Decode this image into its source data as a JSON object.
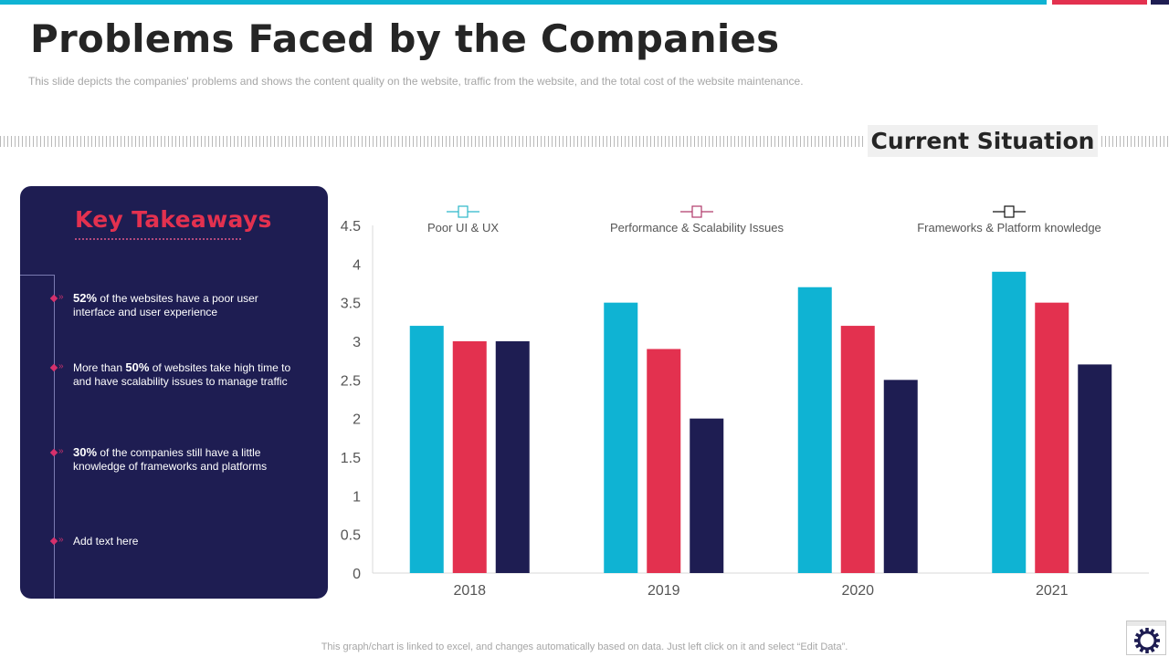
{
  "slide": {
    "title": "Problems Faced by the Companies",
    "subtitle": "This slide depicts the companies' problems and shows the content quality on the website, traffic from the website, and the total cost of the website maintenance.",
    "section_label": "Current Situation",
    "footer_note": "This graph/chart is linked to excel, and changes automatically based on data. Just left click on it and select “Edit Data”.",
    "colors": {
      "cyan": "#0fb3d3",
      "red": "#e3314f",
      "navy": "#1e1d52"
    }
  },
  "takeaways": {
    "title": "Key Takeaways",
    "items": [
      {
        "bold": "52%",
        "text": " of the websites have a poor user interface and user experience"
      },
      {
        "prefix": "More than ",
        "bold": "50%",
        "text": " of websites take high time to and have scalability issues to manage traffic"
      },
      {
        "bold": "30%",
        "text": " of the companies still have a little knowledge of frameworks and platforms"
      },
      {
        "text": "Add text here"
      }
    ]
  },
  "chart_data": {
    "type": "bar",
    "title": "",
    "xlabel": "",
    "ylabel": "",
    "categories": [
      "2018",
      "2019",
      "2020",
      "2021"
    ],
    "series": [
      {
        "name": "Poor UI & UX",
        "color": "#0fb3d3",
        "values": [
          3.2,
          3.5,
          3.7,
          3.9
        ]
      },
      {
        "name": "Performance  & Scalability Issues",
        "color": "#e3314f",
        "values": [
          3.0,
          2.9,
          3.2,
          3.5
        ]
      },
      {
        "name": "Frameworks  & Platform  knowledge",
        "color": "#1e1d52",
        "values": [
          3.0,
          2.0,
          2.5,
          2.7
        ]
      }
    ],
    "ylim": [
      0,
      4.5
    ],
    "yticks": [
      "0",
      "0.5",
      "1",
      "1.5",
      "2",
      "2.5",
      "3",
      "3.5",
      "4",
      "4.5"
    ],
    "grid": false,
    "legend": "top"
  },
  "icons": {
    "gear": "gear-icon"
  }
}
